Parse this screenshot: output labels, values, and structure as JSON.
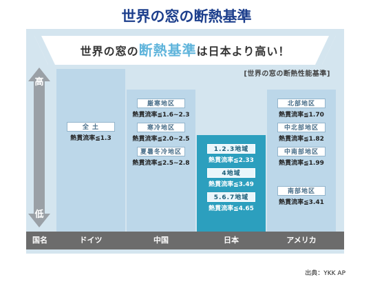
{
  "page_title": "世界の窓の断熱基準",
  "headline": {
    "prefix": "世界の窓の",
    "highlight": "断熱基準",
    "suffix": "は日本より高い！"
  },
  "subtitle": "[世界の窓の断熱性能基準]",
  "axis": {
    "high": "高",
    "low": "低"
  },
  "category_header": "国名",
  "columns": [
    {
      "name": "ドイツ",
      "zones": [
        {
          "region": "全 土",
          "value": "熱貫流率≦1.3"
        }
      ]
    },
    {
      "name": "中国",
      "zones": [
        {
          "region": "厳寒地区",
          "value": "熱貫流率≦1.6~2.3"
        },
        {
          "region": "寒冷地区",
          "value": "熱貫流率≦2.0~2.5"
        },
        {
          "region": "夏暑冬冷地区",
          "value": "熱貫流率≦2.5~2.8"
        }
      ]
    },
    {
      "name": "日本",
      "zones": [
        {
          "region": "1.2.3地域",
          "value": "熱貫流率≦2.33"
        },
        {
          "region": "4地域",
          "value": "熱貫流率≦3.49"
        },
        {
          "region": "5.6.7地域",
          "value": "熱貫流率≦4.65"
        }
      ]
    },
    {
      "name": "アメリカ",
      "zones": [
        {
          "region": "北部地区",
          "value": "熱貫流率≦1.70"
        },
        {
          "region": "中北部地区",
          "value": "熱貫流率≦1.82"
        },
        {
          "region": "中南部地区",
          "value": "熱貫流率≦1.99"
        },
        {
          "region": "南部地区",
          "value": "熱貫流率≦3.41"
        }
      ]
    }
  ],
  "source": "出典：YKK AP",
  "colors": {
    "panel": "#d4e5ef",
    "column": "#bcd7e9",
    "japan_column": "#2c9fbe",
    "highlight": "#5fb4db",
    "title": "#1c3e8c",
    "category_bar": "#6c6c6c"
  },
  "chart_data": {
    "type": "table",
    "title": "世界の窓の断熱基準は日本より高い！",
    "subtitle": "[世界の窓の断熱性能基準]",
    "categories": [
      "ドイツ",
      "中国",
      "日本",
      "アメリカ"
    ],
    "series": [
      {
        "name": "ドイツ",
        "rows": [
          [
            "全 土",
            "熱貫流率≦1.3"
          ]
        ]
      },
      {
        "name": "中国",
        "rows": [
          [
            "厳寒地区",
            "熱貫流率≦1.6~2.3"
          ],
          [
            "寒冷地区",
            "熱貫流率≦2.0~2.5"
          ],
          [
            "夏暑冬冷地区",
            "熱貫流率≦2.5~2.8"
          ]
        ]
      },
      {
        "name": "日本",
        "rows": [
          [
            "1.2.3地域",
            "熱貫流率≦2.33"
          ],
          [
            "4地域",
            "熱貫流率≦3.49"
          ],
          [
            "5.6.7地域",
            "熱貫流率≦4.65"
          ]
        ]
      },
      {
        "name": "アメリカ",
        "rows": [
          [
            "北部地区",
            "熱貫流率≦1.70"
          ],
          [
            "中北部地区",
            "熱貫流率≦1.82"
          ],
          [
            "中南部地区",
            "熱貫流率≦1.99"
          ],
          [
            "南部地区",
            "熱貫流率≦3.41"
          ]
        ]
      }
    ]
  }
}
